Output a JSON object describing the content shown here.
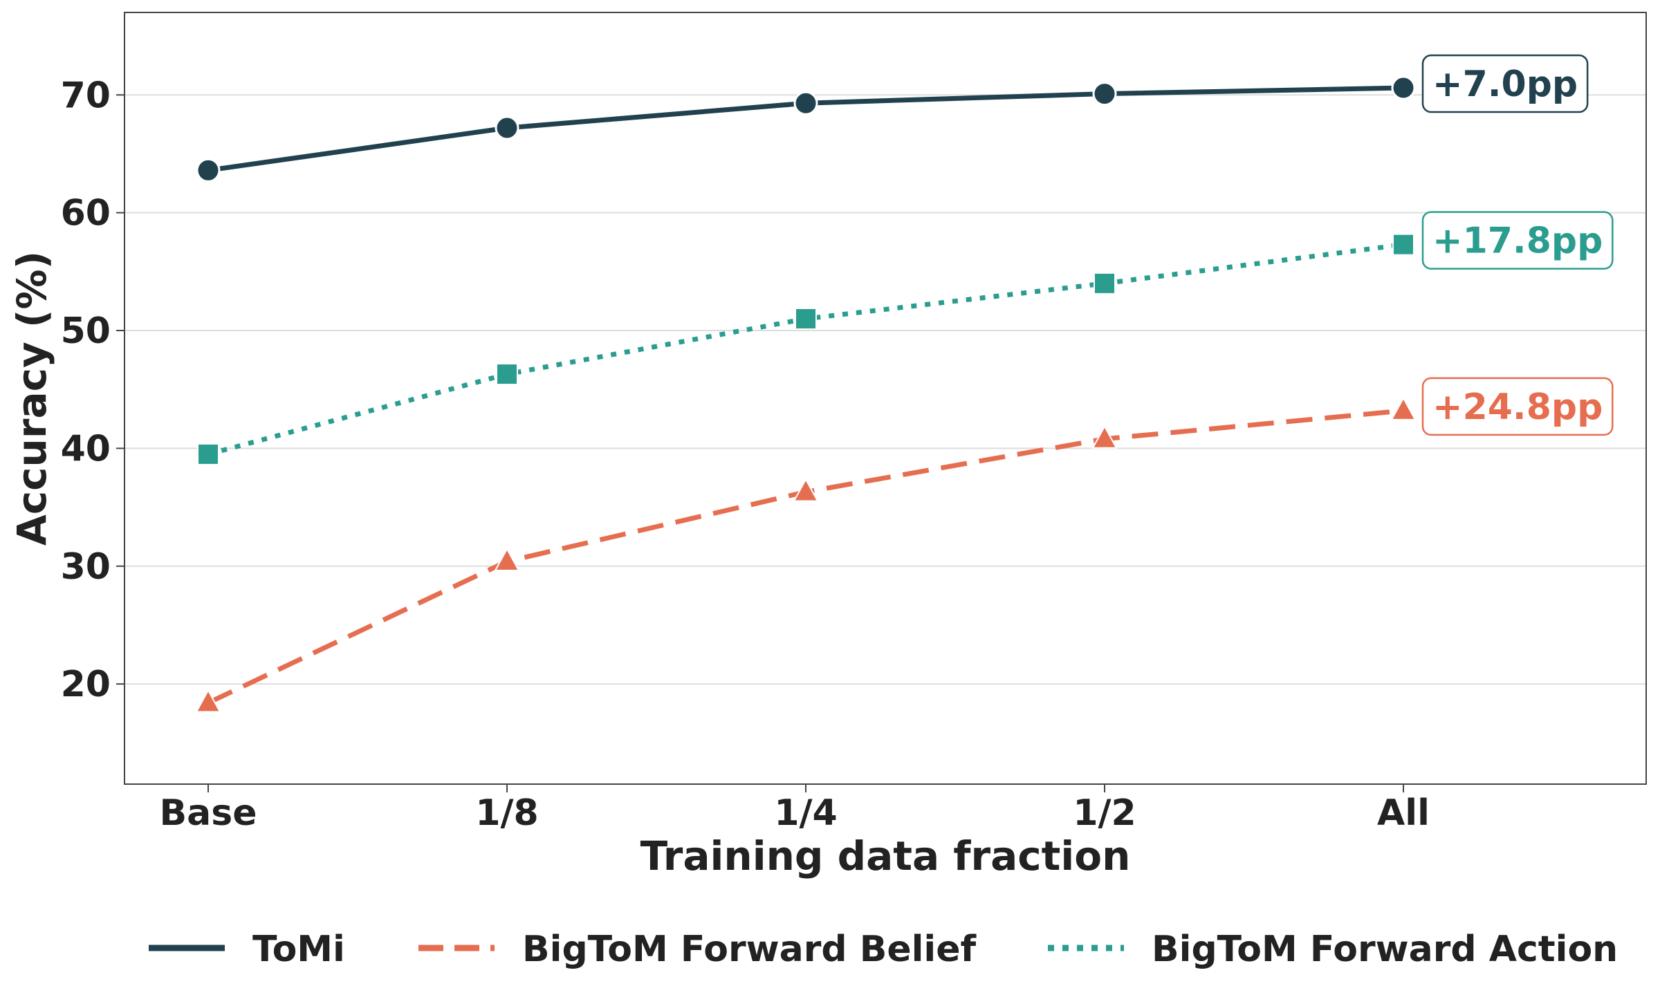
{
  "chart_data": {
    "type": "line",
    "title": "",
    "xlabel": "Training data fraction",
    "ylabel": "Accuracy (%)",
    "categories": [
      "Base",
      "1/8",
      "1/4",
      "1/2",
      "All"
    ],
    "ylim": [
      11.5,
      77
    ],
    "yticks": [
      20,
      30,
      40,
      50,
      60,
      70
    ],
    "grid": "horizontal",
    "legend_position": "bottom",
    "series": [
      {
        "name": "ToMi",
        "values": [
          63.6,
          67.2,
          69.3,
          70.1,
          70.6
        ],
        "color": "#22414f",
        "line_style": "solid",
        "marker": "circle",
        "annotation": "+7.0pp"
      },
      {
        "name": "BigToM Forward Belief",
        "values": [
          18.4,
          30.4,
          36.3,
          40.8,
          43.2
        ],
        "color": "#e66e50",
        "line_style": "dashed",
        "marker": "triangle",
        "annotation": "+24.8pp"
      },
      {
        "name": "BigToM Forward Action",
        "values": [
          39.5,
          46.3,
          51.0,
          54.0,
          57.3
        ],
        "color": "#2a9d8f",
        "line_style": "dotted",
        "marker": "square",
        "annotation": "+17.8pp"
      }
    ]
  }
}
